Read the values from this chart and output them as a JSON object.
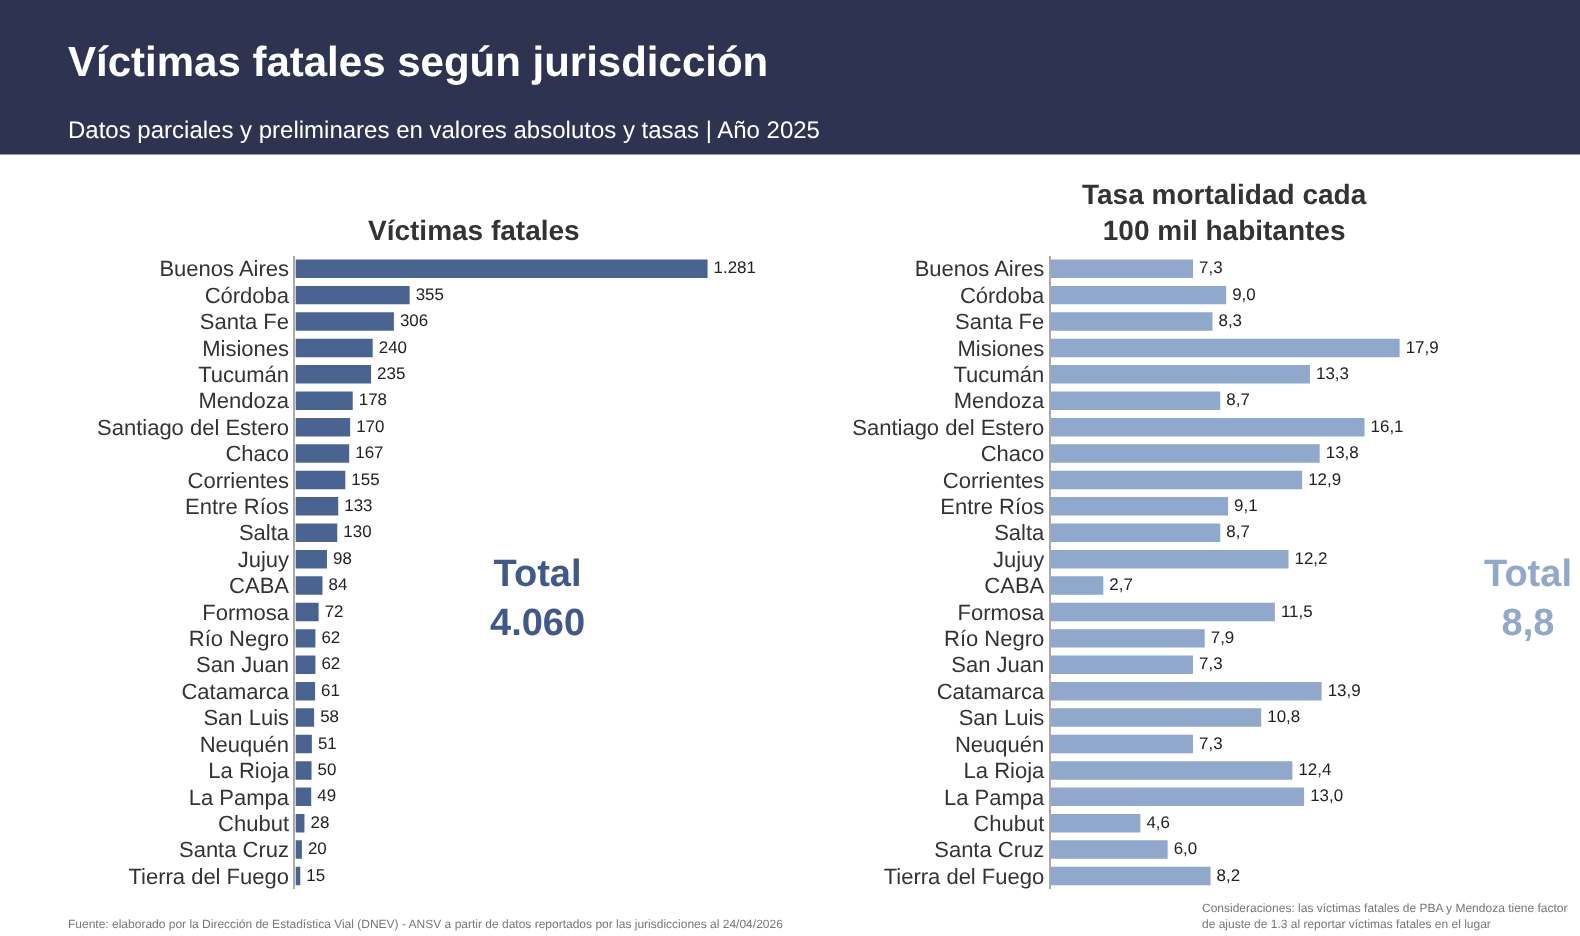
{
  "chart_data": [
    {
      "type": "other",
      "title": "Víctimas fatales según jurisdicción",
      "subtitle": "Datos parciales y preliminares en valores absolutos y tasas | Año 2025",
      "annotations": [
        "Fuente: elaborado por la Dirección de Estadística Vial (DNEV) - ANSV a partir de datos reportados por las jurisdicciones al 24/04/2026",
        "Consideraciones: las víctimas fatales de PBA y Mendoza tiene factor de ajuste de 1.3 al reportar víctimas fatales en el lugar"
      ]
    },
    {
      "type": "bar",
      "orientation": "horizontal",
      "title": "Víctimas fatales",
      "color": "#4a6491",
      "categories": [
        "Buenos Aires",
        "Córdoba",
        "Santa Fe",
        "Misiones",
        "Tucumán",
        "Mendoza",
        "Santiago del Estero",
        "Chaco",
        "Corrientes",
        "Entre Ríos",
        "Salta",
        "Jujuy",
        "CABA",
        "Formosa",
        "Río Negro",
        "San Juan",
        "Catamarca",
        "San Luis",
        "Neuquén",
        "La Rioja",
        "La Pampa",
        "Chubut",
        "Santa Cruz",
        "Tierra del Fuego"
      ],
      "values": [
        1281,
        355,
        306,
        240,
        235,
        178,
        170,
        167,
        155,
        133,
        130,
        98,
        84,
        72,
        62,
        62,
        61,
        58,
        51,
        50,
        49,
        28,
        20,
        15
      ],
      "value_labels": [
        "1.281",
        "355",
        "306",
        "240",
        "235",
        "178",
        "170",
        "167",
        "155",
        "133",
        "130",
        "98",
        "84",
        "72",
        "62",
        "62",
        "61",
        "58",
        "51",
        "50",
        "49",
        "28",
        "20",
        "15"
      ],
      "annotations": [
        "Total 4.060"
      ]
    },
    {
      "type": "bar",
      "orientation": "horizontal",
      "title": "Tasa mortalidad cada 100 mil habitantes",
      "color": "#8fa8cc",
      "categories": [
        "Buenos Aires",
        "Córdoba",
        "Santa Fe",
        "Misiones",
        "Tucumán",
        "Mendoza",
        "Santiago del Estero",
        "Chaco",
        "Corrientes",
        "Entre Ríos",
        "Salta",
        "Jujuy",
        "CABA",
        "Formosa",
        "Río Negro",
        "San Juan",
        "Catamarca",
        "San Luis",
        "Neuquén",
        "La Rioja",
        "La Pampa",
        "Chubut",
        "Santa Cruz",
        "Tierra del Fuego"
      ],
      "values": [
        7.3,
        9.0,
        8.3,
        17.9,
        13.3,
        8.7,
        16.1,
        13.8,
        12.9,
        9.1,
        8.7,
        12.2,
        2.7,
        11.5,
        7.9,
        7.3,
        13.9,
        10.8,
        7.3,
        12.4,
        13.0,
        4.6,
        6.0,
        8.2
      ],
      "value_labels": [
        "7,3",
        "9,0",
        "8,3",
        "17,9",
        "13,3",
        "8,7",
        "16,1",
        "13,8",
        "12,9",
        "9,1",
        "8,7",
        "12,2",
        "2,7",
        "11,5",
        "7,9",
        "7,3",
        "13,9",
        "10,8",
        "7,3",
        "12,4",
        "13,0",
        "4,6",
        "6,0",
        "8,2"
      ],
      "annotations": [
        "Total 8,8"
      ]
    }
  ]
}
